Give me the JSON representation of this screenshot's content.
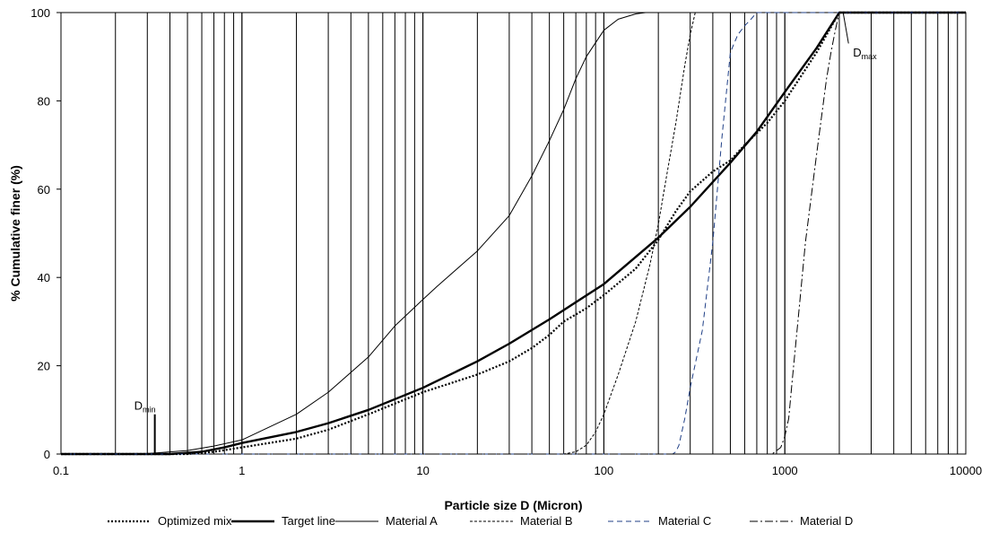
{
  "chart_data": {
    "type": "line",
    "xlabel": "Particle size D (Micron)",
    "ylabel": "% Cumulative finer (%)",
    "xscale": "log",
    "xlim": [
      0.1,
      10000
    ],
    "ylim": [
      0,
      100
    ],
    "xticks": [
      "0.1",
      "1",
      "10",
      "100",
      "1000",
      "10000"
    ],
    "yticks": [
      "0",
      "20",
      "40",
      "60",
      "80",
      "100"
    ],
    "grid": "vertical log gridlines",
    "legend_position": "bottom",
    "annotations": [
      {
        "main": "D",
        "sub": "min",
        "x": 0.33,
        "y": 9
      },
      {
        "main": "D",
        "sub": "max",
        "x": 2100,
        "y": 100
      }
    ],
    "series": [
      {
        "name": "Optimized mix",
        "style": "dotted",
        "width": 2.2,
        "x": [
          0.1,
          0.5,
          0.7,
          1,
          2,
          3,
          5,
          10,
          20,
          30,
          40,
          50,
          60,
          80,
          100,
          150,
          200,
          250,
          300,
          400,
          500,
          600,
          800,
          1000,
          1500,
          2000,
          10000
        ],
        "y": [
          0,
          0,
          0.5,
          1.5,
          3.5,
          5.5,
          9,
          14,
          18,
          21,
          24,
          27,
          30,
          33,
          36,
          42,
          48.5,
          55,
          59.5,
          64,
          66.5,
          70,
          75,
          80,
          91,
          100,
          100
        ]
      },
      {
        "name": "Target line",
        "style": "solid",
        "width": 2.4,
        "x": [
          0.1,
          0.4,
          0.6,
          0.8,
          1,
          2,
          3,
          5,
          10,
          20,
          30,
          50,
          100,
          200,
          300,
          500,
          700,
          1000,
          1500,
          2000,
          10000
        ],
        "y": [
          0,
          0,
          0.5,
          1.5,
          2.5,
          5,
          7,
          10,
          15,
          21,
          25,
          30.5,
          38.5,
          49,
          56,
          66,
          73,
          82,
          92,
          100,
          100
        ]
      },
      {
        "name": "Material A",
        "style": "solid",
        "width": 1,
        "x": [
          0.1,
          0.3,
          0.5,
          0.7,
          1,
          2,
          3,
          5,
          7,
          10,
          12,
          20,
          30,
          40,
          50,
          60,
          70,
          80,
          100,
          120,
          150,
          170,
          200,
          10000
        ],
        "y": [
          0,
          0.1,
          0.8,
          1.8,
          3.2,
          9,
          14,
          22,
          29,
          35,
          38,
          46,
          54,
          63,
          71,
          78,
          85,
          90,
          96,
          98.5,
          99.7,
          100,
          100,
          100
        ]
      },
      {
        "name": "Material B",
        "style": "dashed-short",
        "width": 1,
        "x": [
          0.1,
          60,
          70,
          80,
          90,
          100,
          120,
          150,
          180,
          200,
          220,
          250,
          280,
          300,
          320,
          10000
        ],
        "y": [
          0,
          0,
          0.5,
          2,
          5,
          9,
          18,
          30,
          43,
          52,
          62,
          75,
          88,
          95,
          100,
          100
        ]
      },
      {
        "name": "Material C",
        "style": "dashed",
        "width": 1,
        "x": [
          0.1,
          240,
          250,
          260,
          280,
          300,
          350,
          400,
          450,
          500,
          550,
          600,
          650,
          700,
          10000
        ],
        "y": [
          0,
          0,
          0.5,
          2,
          8,
          15,
          28,
          48,
          72,
          91,
          95,
          97,
          98.5,
          100,
          100
        ]
      },
      {
        "name": "Material D",
        "style": "dash-dot",
        "width": 1,
        "x": [
          0.1,
          850,
          950,
          1000,
          1050,
          1100,
          1200,
          1300,
          1500,
          1700,
          1800,
          1900,
          2000,
          10000
        ],
        "y": [
          0,
          0,
          1.5,
          4,
          8,
          17,
          33,
          48,
          68,
          85,
          91,
          96,
          100,
          100
        ]
      }
    ]
  }
}
